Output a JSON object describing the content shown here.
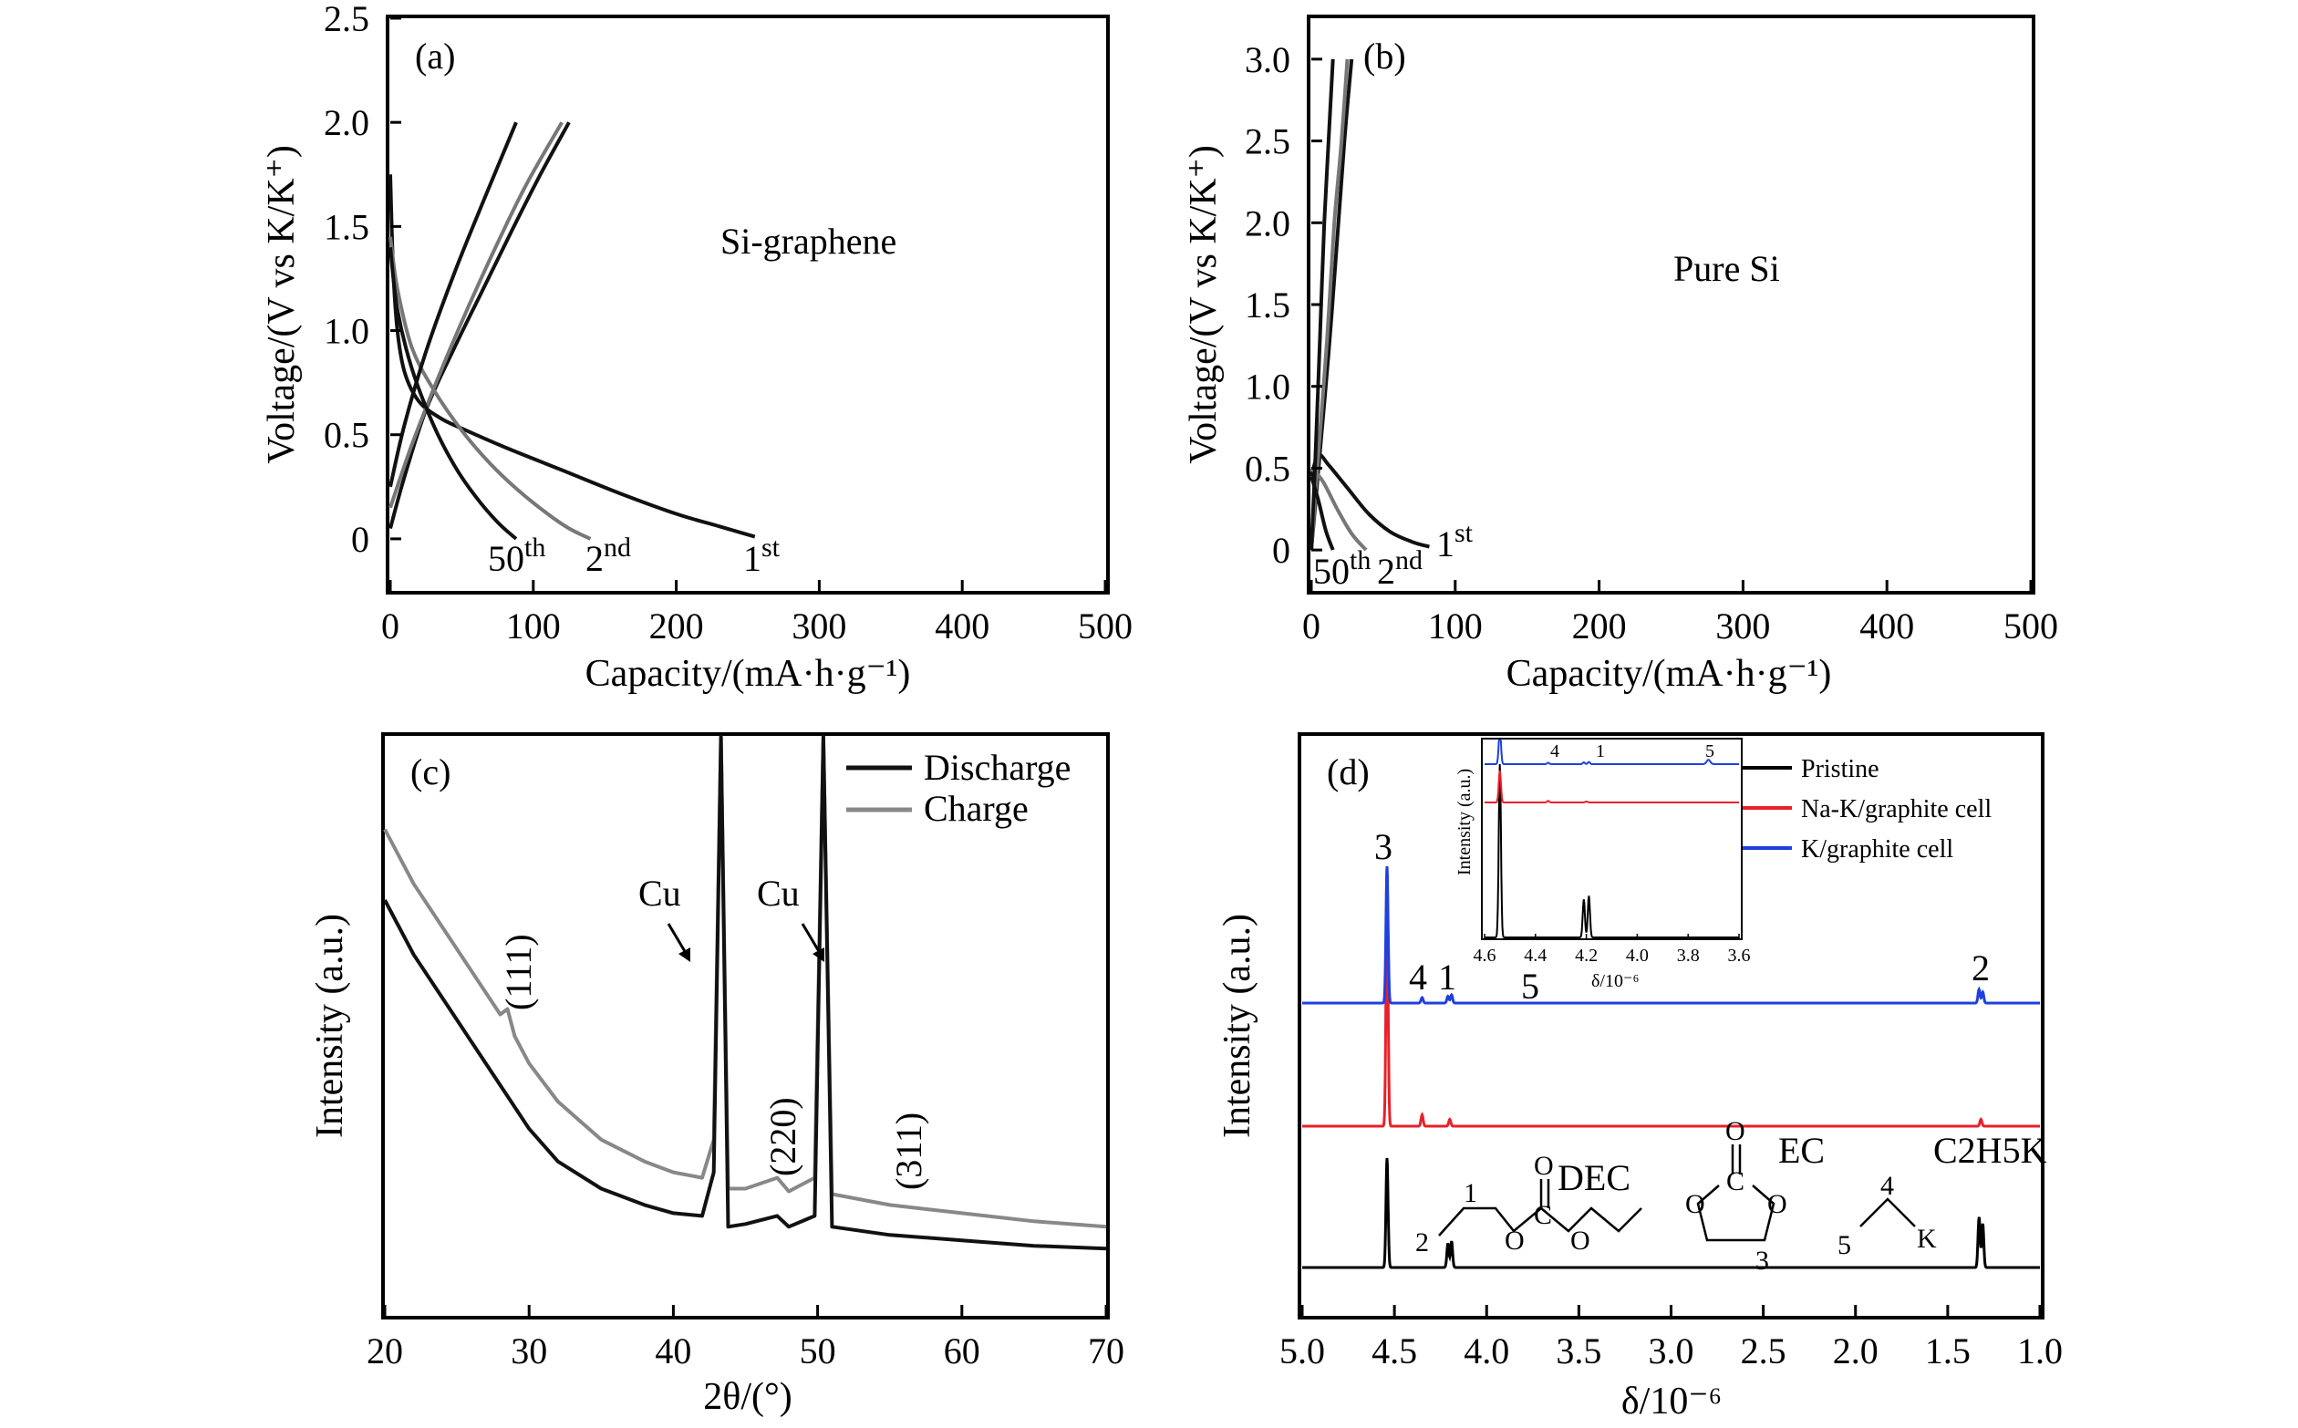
{
  "chart_data": [
    {
      "panel": "(a)",
      "type": "line",
      "xlabel": "Capacity/(mA·h·g⁻¹)",
      "ylabel": "Voltage/(V vs K/K⁺)",
      "xlim": [
        0,
        500
      ],
      "ylim": [
        -0.25,
        2.5
      ],
      "xticks": [
        "0",
        "100",
        "200",
        "300",
        "400",
        "500"
      ],
      "yticks": [
        "0",
        "0.5",
        "1.0",
        "1.5",
        "2.0",
        "2.5"
      ],
      "annotation": "Si-graphene",
      "cycle_labels": [
        {
          "base": "50",
          "sup": "th"
        },
        {
          "base": "2",
          "sup": "nd"
        },
        {
          "base": "1",
          "sup": "st"
        }
      ],
      "series": [
        {
          "cycle": "1st discharge",
          "color": "#111111",
          "x": [
            0,
            2,
            5,
            10,
            20,
            35,
            50,
            80,
            120,
            160,
            200,
            230,
            255
          ],
          "y": [
            1.75,
            1.3,
            1.0,
            0.8,
            0.66,
            0.58,
            0.53,
            0.44,
            0.33,
            0.22,
            0.12,
            0.06,
            0.01
          ]
        },
        {
          "cycle": "1st charge",
          "color": "#111111",
          "x": [
            0,
            10,
            25,
            45,
            65,
            85,
            105,
            125
          ],
          "y": [
            0.05,
            0.3,
            0.62,
            0.92,
            1.2,
            1.48,
            1.75,
            2.0
          ]
        },
        {
          "cycle": "2nd discharge",
          "color": "#777777",
          "x": [
            0,
            5,
            15,
            30,
            50,
            70,
            90,
            110,
            125,
            140
          ],
          "y": [
            1.45,
            1.2,
            0.92,
            0.72,
            0.52,
            0.36,
            0.23,
            0.12,
            0.05,
            0.0
          ]
        },
        {
          "cycle": "2nd charge",
          "color": "#777777",
          "x": [
            0,
            15,
            35,
            55,
            75,
            95,
            120
          ],
          "y": [
            0.15,
            0.45,
            0.8,
            1.12,
            1.42,
            1.7,
            2.0
          ]
        },
        {
          "cycle": "50th discharge",
          "color": "#111111",
          "x": [
            0,
            5,
            15,
            30,
            45,
            60,
            75,
            88
          ],
          "y": [
            1.4,
            1.1,
            0.82,
            0.55,
            0.35,
            0.2,
            0.08,
            0.0
          ]
        },
        {
          "cycle": "50th charge",
          "color": "#111111",
          "x": [
            0,
            10,
            25,
            45,
            65,
            88
          ],
          "y": [
            0.25,
            0.55,
            0.9,
            1.28,
            1.62,
            2.0
          ]
        }
      ]
    },
    {
      "panel": "(b)",
      "type": "line",
      "xlabel": "Capacity/(mA·h·g⁻¹)",
      "ylabel": "Voltage/(V vs K/K⁺)",
      "xlim": [
        0,
        500
      ],
      "ylim": [
        -0.25,
        3.25
      ],
      "xticks": [
        "0",
        "100",
        "200",
        "300",
        "400",
        "500"
      ],
      "yticks": [
        "0",
        "0.5",
        "1.0",
        "1.5",
        "2.0",
        "2.5",
        "3.0"
      ],
      "annotation": "Pure Si",
      "cycle_labels": [
        {
          "base": "50",
          "sup": "th"
        },
        {
          "base": "2",
          "sup": "nd"
        },
        {
          "base": "1",
          "sup": "st"
        }
      ],
      "series": [
        {
          "cycle": "1st discharge",
          "color": "#111111",
          "x": [
            0,
            5,
            12,
            25,
            40,
            55,
            70,
            82
          ],
          "y": [
            0.45,
            0.58,
            0.52,
            0.38,
            0.22,
            0.11,
            0.05,
            0.02
          ]
        },
        {
          "cycle": "1st charge",
          "color": "#111111",
          "x": [
            0,
            5,
            12,
            18,
            23,
            28
          ],
          "y": [
            0.0,
            0.5,
            1.2,
            1.9,
            2.5,
            3.0
          ]
        },
        {
          "cycle": "2nd discharge",
          "color": "#777777",
          "x": [
            0,
            8,
            18,
            28,
            38
          ],
          "y": [
            0.5,
            0.42,
            0.25,
            0.1,
            0.0
          ]
        },
        {
          "cycle": "2nd charge",
          "color": "#777777",
          "x": [
            0,
            5,
            11,
            16,
            21,
            25
          ],
          "y": [
            0.0,
            0.6,
            1.3,
            2.0,
            2.5,
            3.0
          ]
        },
        {
          "cycle": "50th discharge",
          "color": "#111111",
          "x": [
            0,
            5,
            10,
            15
          ],
          "y": [
            0.45,
            0.3,
            0.12,
            0.0
          ]
        },
        {
          "cycle": "50th charge",
          "color": "#111111",
          "x": [
            0,
            3,
            6,
            9,
            12,
            15
          ],
          "y": [
            0.0,
            0.6,
            1.3,
            2.0,
            2.5,
            3.0
          ]
        }
      ]
    },
    {
      "panel": "(c)",
      "type": "line",
      "xlabel": "2θ/(°)",
      "ylabel": "Intensity (a.u.)",
      "xlim": [
        20,
        70
      ],
      "xticks": [
        "20",
        "30",
        "40",
        "50",
        "60",
        "70"
      ],
      "legend": [
        "Discharge",
        "Charge"
      ],
      "legend_position": "top-right",
      "annotations": [
        "Cu",
        "Cu",
        "(111)",
        "(220)",
        "(311)"
      ],
      "series": [
        {
          "name": "Discharge",
          "color": "#111111",
          "x": [
            20,
            22,
            24,
            26,
            28,
            30,
            32,
            35,
            38,
            40,
            42,
            42.8,
            43.3,
            43.8,
            45,
            47.2,
            48,
            49.8,
            50.4,
            51,
            55,
            60,
            65,
            70
          ],
          "y": [
            70,
            60,
            52,
            44,
            36,
            28,
            22,
            17,
            14,
            12.5,
            12,
            20,
            100,
            10,
            10.5,
            12,
            10,
            12,
            100,
            10,
            8.5,
            7.5,
            6.5,
            6
          ]
        },
        {
          "name": "Charge",
          "color": "#888888",
          "x": [
            20,
            22,
            24,
            26,
            28,
            28.5,
            29,
            30,
            32,
            35,
            38,
            40,
            42,
            42.8,
            43.3,
            43.8,
            45,
            47.2,
            48,
            49.8,
            50.4,
            51,
            55,
            60,
            65,
            70
          ],
          "y": [
            83,
            73,
            65,
            57,
            49,
            50,
            45,
            40,
            33,
            26,
            22,
            20,
            19,
            26,
            100,
            17,
            17,
            19,
            16.5,
            19,
            100,
            16,
            14,
            12.5,
            11,
            10
          ]
        }
      ]
    },
    {
      "panel": "(d)",
      "type": "line",
      "xlabel": "δ/10⁻⁶",
      "ylabel": "Intensity (a.u.)",
      "xlim": [
        5.0,
        1.0
      ],
      "xticks": [
        "5.0",
        "4.5",
        "4.0",
        "3.5",
        "3.0",
        "2.5",
        "2.0",
        "1.5",
        "1.0"
      ],
      "legend": [
        "Pristine",
        "Na-K/graphite cell",
        "K/graphite cell"
      ],
      "peak_labels": [
        "3",
        "4",
        "1",
        "5",
        "2"
      ],
      "structures": [
        "DEC",
        "EC",
        "C2H5K"
      ],
      "series": [
        {
          "name": "Pristine",
          "color": "#000000",
          "peaks": [
            {
              "delta": 4.54,
              "height": 1.0
            },
            {
              "delta": 4.21,
              "height": 0.22
            },
            {
              "delta": 4.19,
              "height": 0.24
            },
            {
              "delta": 1.33,
              "height": 0.46
            },
            {
              "delta": 1.31,
              "height": 0.4
            }
          ]
        },
        {
          "name": "Na-K/graphite cell",
          "color": "#e8202a",
          "peaks": [
            {
              "delta": 4.54,
              "height": 1.0
            },
            {
              "delta": 4.35,
              "height": 0.05
            },
            {
              "delta": 4.2,
              "height": 0.03
            },
            {
              "delta": 1.32,
              "height": 0.03
            }
          ]
        },
        {
          "name": "K/graphite cell",
          "color": "#1f3fdf",
          "peaks": [
            {
              "delta": 4.54,
              "height": 1.0
            },
            {
              "delta": 4.35,
              "height": 0.04
            },
            {
              "delta": 4.21,
              "height": 0.05
            },
            {
              "delta": 4.19,
              "height": 0.06
            },
            {
              "delta": 1.33,
              "height": 0.1
            },
            {
              "delta": 1.31,
              "height": 0.08
            }
          ]
        }
      ],
      "inset": {
        "xlim": [
          4.6,
          3.6
        ],
        "xticks": [
          "4.6",
          "4.4",
          "4.2",
          "4.0",
          "3.8",
          "3.6"
        ],
        "xlabel": "δ/10⁻⁶",
        "ylabel": "Intensity (a.u.)",
        "peak_labels": [
          "4",
          "1",
          "5"
        ]
      }
    }
  ]
}
